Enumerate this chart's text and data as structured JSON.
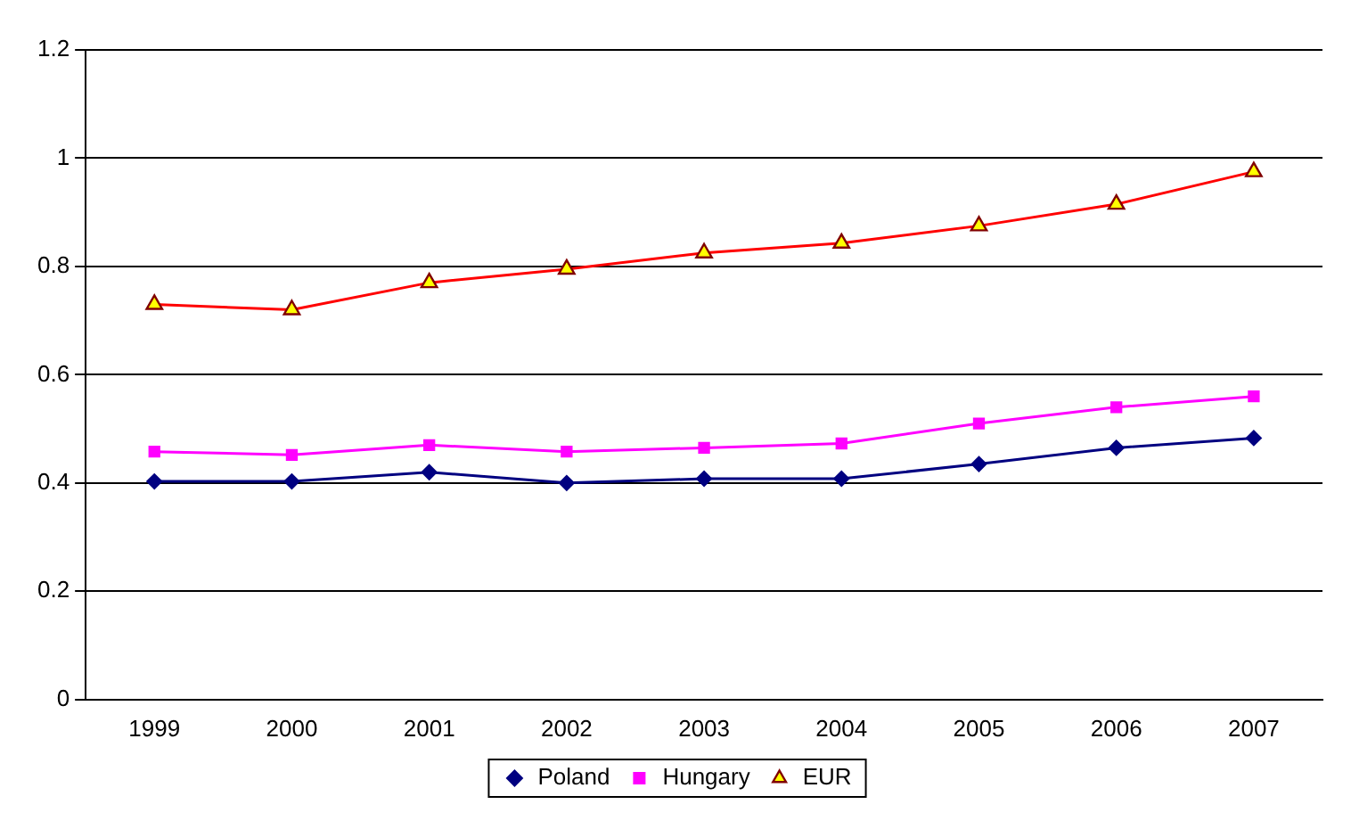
{
  "chart_data": {
    "type": "line",
    "categories": [
      "1999",
      "2000",
      "2001",
      "2002",
      "2003",
      "2004",
      "2005",
      "2006",
      "2007"
    ],
    "series": [
      {
        "name": "Poland",
        "color": "#000080",
        "marker": "diamond",
        "values": [
          0.403,
          0.403,
          0.42,
          0.4,
          0.408,
          0.408,
          0.435,
          0.465,
          0.483
        ]
      },
      {
        "name": "Hungary",
        "color": "#ff00ff",
        "marker": "square",
        "values": [
          0.458,
          0.452,
          0.47,
          0.458,
          0.465,
          0.473,
          0.51,
          0.54,
          0.56
        ]
      },
      {
        "name": "EUR",
        "color": "#ff0000",
        "marker": "triangle",
        "values": [
          0.73,
          0.72,
          0.77,
          0.795,
          0.825,
          0.843,
          0.875,
          0.915,
          0.975
        ]
      }
    ],
    "ylim": [
      0,
      1.2
    ],
    "yticks": [
      0,
      0.2,
      0.4,
      0.6,
      0.8,
      1,
      1.2
    ],
    "grid": "y",
    "legend": "bottom",
    "line_style": "solid"
  }
}
